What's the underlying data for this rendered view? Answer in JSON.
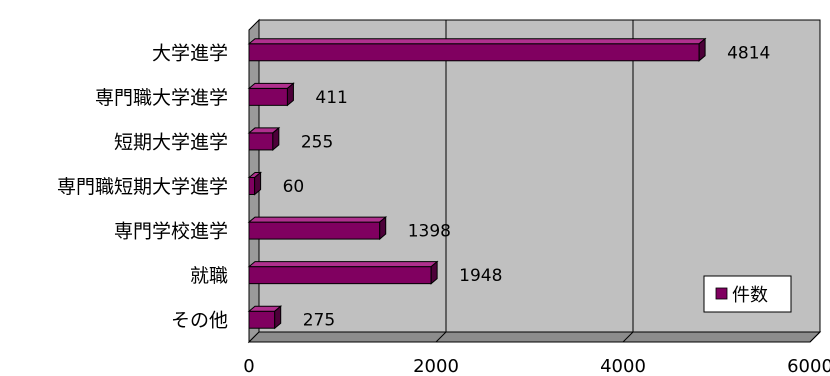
{
  "chart_data": {
    "type": "bar",
    "orientation": "horizontal",
    "categories": [
      "大学進学",
      "専門職大学進学",
      "短期大学進学",
      "専門職短期大学進学",
      "専門学校進学",
      "就職",
      "その他"
    ],
    "series": [
      {
        "name": "件数",
        "values": [
          4814,
          411,
          255,
          60,
          1398,
          1948,
          275
        ],
        "color": "#800060"
      }
    ],
    "xlim": [
      0,
      6000
    ],
    "xticks": [
      0,
      2000,
      4000,
      6000
    ],
    "grid": true,
    "legend_position": "bottom-right",
    "style": "3d"
  },
  "legend": {
    "label": "件数"
  }
}
